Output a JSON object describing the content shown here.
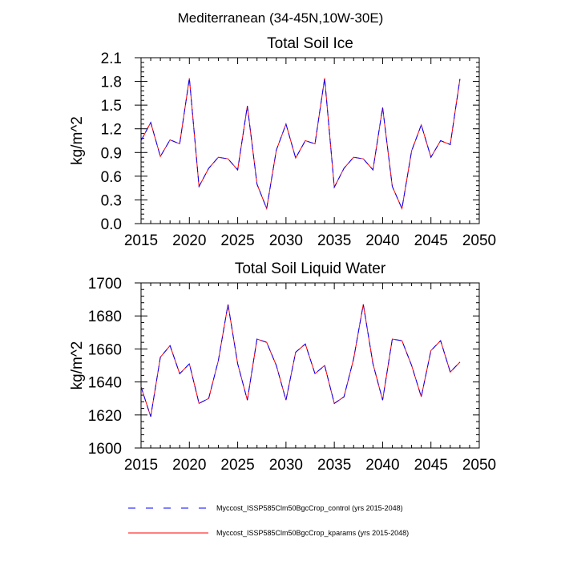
{
  "figure_title": "Mediterranean (34-45N,10W-30E)",
  "legend": [
    {
      "label": "Myccost_ISSP585Clm50BgcCrop_control (yrs 2015-2048)",
      "color": "#0000ff",
      "style": "dashed"
    },
    {
      "label": "Myccost_ISSP585Clm50BgcCrop_kparams (yrs 2015-2048)",
      "color": "#ff0000",
      "style": "solid"
    }
  ],
  "chart_data": [
    {
      "type": "line",
      "title": "Total Soil Ice",
      "xlabel": "",
      "ylabel": "kg/m^2",
      "xlim": [
        2015,
        2050
      ],
      "ylim": [
        0.0,
        2.1
      ],
      "xticks": [
        2015,
        2020,
        2025,
        2030,
        2035,
        2040,
        2045,
        2050
      ],
      "yticks": [
        0.0,
        0.3,
        0.6,
        0.9,
        1.2,
        1.5,
        1.8,
        2.1
      ],
      "ytick_labels": [
        "0.0",
        "0.3",
        "0.6",
        "0.9",
        "1.2",
        "1.5",
        "1.8",
        "2.1"
      ],
      "grid": false,
      "x": [
        2015,
        2016,
        2017,
        2018,
        2019,
        2020,
        2021,
        2022,
        2023,
        2024,
        2025,
        2026,
        2027,
        2028,
        2029,
        2030,
        2031,
        2032,
        2033,
        2034,
        2035,
        2036,
        2037,
        2038,
        2039,
        2040,
        2041,
        2042,
        2043,
        2044,
        2045,
        2046,
        2047,
        2048
      ],
      "series": [
        {
          "name": "Myccost_ISSP585Clm50BgcCrop_control (yrs 2015-2048)",
          "color": "#0000ff",
          "style": "dashed",
          "values": [
            1.05,
            1.28,
            0.85,
            1.06,
            1.01,
            1.84,
            0.47,
            0.7,
            0.84,
            0.82,
            0.68,
            1.49,
            0.5,
            0.19,
            0.93,
            1.26,
            0.83,
            1.05,
            1.01,
            1.84,
            0.46,
            0.7,
            0.84,
            0.82,
            0.68,
            1.47,
            0.47,
            0.19,
            0.92,
            1.25,
            0.84,
            1.05,
            1.0,
            1.83
          ]
        },
        {
          "name": "Myccost_ISSP585Clm50BgcCrop_kparams (yrs 2015-2048)",
          "color": "#ff0000",
          "style": "solid",
          "values": [
            1.05,
            1.28,
            0.85,
            1.06,
            1.01,
            1.84,
            0.47,
            0.7,
            0.84,
            0.82,
            0.68,
            1.49,
            0.5,
            0.19,
            0.93,
            1.26,
            0.83,
            1.05,
            1.01,
            1.84,
            0.46,
            0.7,
            0.84,
            0.82,
            0.68,
            1.47,
            0.47,
            0.19,
            0.92,
            1.25,
            0.84,
            1.05,
            1.0,
            1.83
          ]
        }
      ]
    },
    {
      "type": "line",
      "title": "Total Soil Liquid Water",
      "xlabel": "",
      "ylabel": "kg/m^2",
      "xlim": [
        2015,
        2050
      ],
      "ylim": [
        1600,
        1700
      ],
      "xticks": [
        2015,
        2020,
        2025,
        2030,
        2035,
        2040,
        2045,
        2050
      ],
      "yticks": [
        1600,
        1620,
        1640,
        1660,
        1680,
        1700
      ],
      "ytick_labels": [
        "1600",
        "1620",
        "1640",
        "1660",
        "1680",
        "1700"
      ],
      "grid": false,
      "x": [
        2015,
        2016,
        2017,
        2018,
        2019,
        2020,
        2021,
        2022,
        2023,
        2024,
        2025,
        2026,
        2027,
        2028,
        2029,
        2030,
        2031,
        2032,
        2033,
        2034,
        2035,
        2036,
        2037,
        2038,
        2039,
        2040,
        2041,
        2042,
        2043,
        2044,
        2045,
        2046,
        2047,
        2048
      ],
      "series": [
        {
          "name": "Myccost_ISSP585Clm50BgcCrop_control (yrs 2015-2048)",
          "color": "#0000ff",
          "style": "dashed",
          "values": [
            1637,
            1619,
            1655,
            1662,
            1645,
            1651,
            1627,
            1630,
            1653,
            1687,
            1651,
            1629,
            1666,
            1664,
            1650,
            1629,
            1658,
            1663,
            1645,
            1650,
            1627,
            1631,
            1654,
            1687,
            1651,
            1629,
            1666,
            1665,
            1650,
            1631,
            1659,
            1665,
            1646,
            1652
          ]
        },
        {
          "name": "Myccost_ISSP585Clm50BgcCrop_kparams (yrs 2015-2048)",
          "color": "#ff0000",
          "style": "solid",
          "values": [
            1637,
            1619,
            1655,
            1662,
            1645,
            1651,
            1627,
            1630,
            1653,
            1687,
            1651,
            1629,
            1666,
            1664,
            1650,
            1629,
            1658,
            1663,
            1645,
            1650,
            1627,
            1631,
            1654,
            1687,
            1651,
            1629,
            1666,
            1665,
            1650,
            1631,
            1659,
            1665,
            1646,
            1652
          ]
        }
      ]
    }
  ]
}
